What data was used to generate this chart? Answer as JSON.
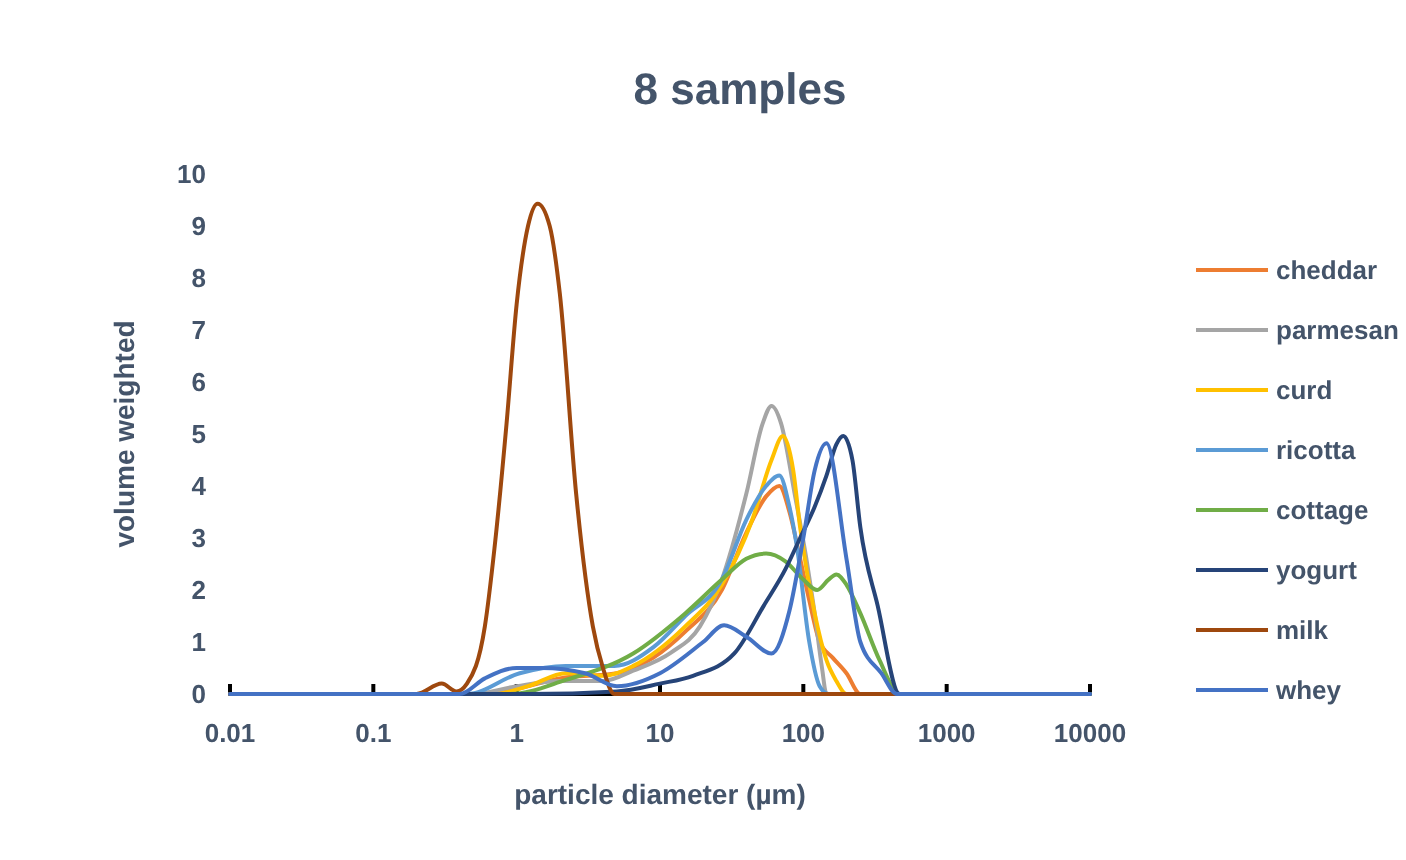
{
  "chart_data": {
    "type": "line",
    "title": "8 samples",
    "xlabel": "particle diameter (µm)",
    "ylabel": "volume weighted",
    "log": "x",
    "xlim": [
      0.01,
      10000
    ],
    "xticks": [
      0.01,
      0.1,
      1,
      10,
      100,
      1000,
      10000
    ],
    "ylim": [
      0,
      10
    ],
    "yticks": [
      0,
      1,
      2,
      3,
      4,
      5,
      6,
      7,
      8,
      9,
      10
    ],
    "grid": false,
    "legend": "right",
    "line_style": "solid",
    "series": [
      {
        "name": "cheddar",
        "color": "#ed7d31",
        "x": [
          0.01,
          0.5,
          1,
          2,
          5,
          9,
          15,
          27,
          40,
          55,
          68,
          80,
          95,
          110,
          130,
          160,
          200,
          250,
          10000
        ],
        "values": [
          0,
          0,
          0.1,
          0.3,
          0.4,
          0.7,
          1.2,
          2.0,
          3.1,
          3.8,
          4.0,
          3.5,
          2.6,
          1.8,
          1.0,
          0.7,
          0.4,
          0,
          0
        ]
      },
      {
        "name": "parmesan",
        "color": "#a5a5a5",
        "x": [
          0.01,
          0.5,
          1,
          2,
          4,
          6.5,
          12,
          19,
          27,
          40,
          52,
          60,
          70,
          87,
          105,
          120,
          135,
          145,
          10000
        ],
        "values": [
          0,
          0,
          0.15,
          0.25,
          0.25,
          0.45,
          0.8,
          1.3,
          2.2,
          3.85,
          5.2,
          5.54,
          5.2,
          3.85,
          2.6,
          1.55,
          0.5,
          0,
          0
        ]
      },
      {
        "name": "curd",
        "color": "#ffc000",
        "x": [
          0.01,
          0.7,
          1.2,
          2.2,
          4,
          6.5,
          15,
          27,
          44,
          60,
          72,
          85,
          95,
          120,
          145,
          170,
          200,
          10000
        ],
        "values": [
          0,
          0,
          0.15,
          0.4,
          0.35,
          0.54,
          1.3,
          2.1,
          3.35,
          4.5,
          4.96,
          4.3,
          3.2,
          1.55,
          0.65,
          0.25,
          0,
          0
        ]
      },
      {
        "name": "ricotta",
        "color": "#5b9bd5",
        "x": [
          0.01,
          0.45,
          1.05,
          2.2,
          4.8,
          9,
          15,
          27,
          40,
          55,
          68,
          80,
          90,
          110,
          130,
          150,
          10000
        ],
        "values": [
          0,
          0,
          0.4,
          0.54,
          0.54,
          0.9,
          1.5,
          2.2,
          3.35,
          4.0,
          4.2,
          3.6,
          2.85,
          1.0,
          0.15,
          0,
          0
        ]
      },
      {
        "name": "cottage",
        "color": "#70ad47",
        "x": [
          0.01,
          0.9,
          2.2,
          6.5,
          15,
          27,
          40,
          55,
          75,
          100,
          125,
          150,
          170,
          200,
          250,
          340,
          470,
          10000
        ],
        "values": [
          0,
          0,
          0.27,
          0.78,
          1.55,
          2.2,
          2.6,
          2.7,
          2.55,
          2.2,
          2.0,
          2.2,
          2.3,
          2.1,
          1.55,
          0.65,
          0,
          0
        ]
      },
      {
        "name": "yogurt",
        "color": "#264478",
        "x": [
          0.01,
          1.2,
          5,
          10,
          17,
          33,
          53,
          75,
          95,
          120,
          145,
          170,
          190,
          220,
          250,
          330,
          470,
          10000
        ],
        "values": [
          0,
          0,
          0.05,
          0.2,
          0.35,
          0.78,
          1.7,
          2.4,
          3.0,
          3.6,
          4.2,
          4.8,
          4.96,
          4.5,
          3.2,
          1.7,
          0,
          0
        ]
      },
      {
        "name": "milk",
        "color": "#9e480e",
        "x": [
          0.01,
          0.2,
          0.3,
          0.38,
          0.45,
          0.6,
          0.7,
          0.85,
          1,
          1.2,
          1.4,
          1.7,
          2,
          2.6,
          3.4,
          4,
          4.8,
          3000
        ],
        "values": [
          0,
          0,
          0.2,
          0.05,
          0.2,
          1.3,
          2.8,
          5.2,
          7.5,
          9.0,
          9.43,
          9.0,
          7.7,
          3.85,
          1.3,
          0.5,
          0,
          0
        ]
      },
      {
        "name": "whey",
        "color": "#4472c4",
        "x": [
          0.01,
          0.4,
          0.6,
          1,
          1.5,
          3,
          5,
          10,
          20,
          28,
          40,
          60,
          80,
          100,
          120,
          145,
          200,
          250,
          350,
          450,
          10000
        ],
        "values": [
          0,
          0,
          0.3,
          0.5,
          0.5,
          0.4,
          0.15,
          0.4,
          1.0,
          1.32,
          1.1,
          0.78,
          1.6,
          3.0,
          4.3,
          4.82,
          2.6,
          1.0,
          0.4,
          0,
          0
        ]
      }
    ]
  }
}
